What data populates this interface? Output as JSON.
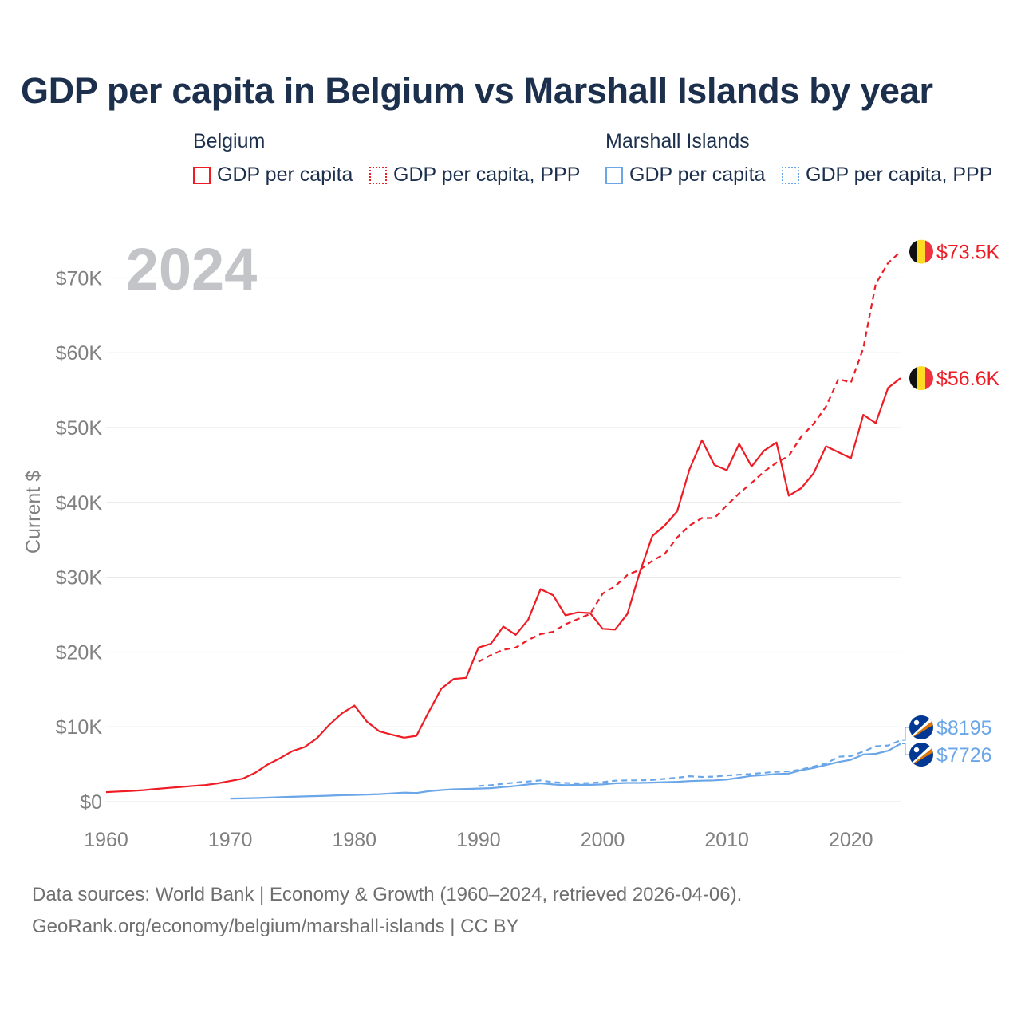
{
  "title": "GDP per capita in Belgium vs Marshall Islands by year",
  "legend": {
    "groups": [
      {
        "name": "Belgium",
        "color": "#ee1c25",
        "items": [
          {
            "label": "GDP per capita",
            "style": "solid"
          },
          {
            "label": "GDP per capita, PPP",
            "style": "dotted"
          }
        ]
      },
      {
        "name": "Marshall Islands",
        "color": "#6aa6e8",
        "items": [
          {
            "label": "GDP per capita",
            "style": "solid"
          },
          {
            "label": "GDP per capita, PPP",
            "style": "dotted"
          }
        ]
      }
    ]
  },
  "year_badge": "2024",
  "chart_data": {
    "type": "line",
    "ylabel": "Current $",
    "xlabel": "",
    "xlim": [
      1960,
      2024
    ],
    "ylim": [
      0,
      73500
    ],
    "x_ticks": [
      "1960",
      "1970",
      "1980",
      "1990",
      "2000",
      "2010",
      "2020"
    ],
    "x_tick_values": [
      1960,
      1970,
      1980,
      1990,
      2000,
      2010,
      2020
    ],
    "y_ticks": [
      "$0",
      "$10K",
      "$20K",
      "$30K",
      "$40K",
      "$50K",
      "$60K",
      "$70K"
    ],
    "y_tick_values": [
      0,
      10000,
      20000,
      30000,
      40000,
      50000,
      60000,
      70000
    ],
    "grid": true,
    "series": [
      {
        "name": "Belgium GDP per capita",
        "country": "Belgium",
        "color": "#ee1c25",
        "dash": "solid",
        "end_label": "$56.6K",
        "x": [
          1960,
          1961,
          1962,
          1963,
          1964,
          1965,
          1966,
          1967,
          1968,
          1969,
          1970,
          1971,
          1972,
          1973,
          1974,
          1975,
          1976,
          1977,
          1978,
          1979,
          1980,
          1981,
          1982,
          1983,
          1984,
          1985,
          1986,
          1987,
          1988,
          1989,
          1990,
          1991,
          1992,
          1993,
          1994,
          1995,
          1996,
          1997,
          1998,
          1999,
          2000,
          2001,
          2002,
          2003,
          2004,
          2005,
          2006,
          2007,
          2008,
          2009,
          2010,
          2011,
          2012,
          2013,
          2014,
          2015,
          2016,
          2017,
          2018,
          2019,
          2020,
          2021,
          2022,
          2023,
          2024
        ],
        "y": [
          1270,
          1350,
          1430,
          1530,
          1690,
          1830,
          1960,
          2100,
          2220,
          2450,
          2760,
          3070,
          3850,
          4950,
          5800,
          6750,
          7300,
          8500,
          10300,
          11800,
          12850,
          10700,
          9400,
          8950,
          8550,
          8800,
          12000,
          15100,
          16400,
          16550,
          20600,
          21100,
          23400,
          22300,
          24300,
          28400,
          27600,
          24900,
          25300,
          25200,
          23100,
          23000,
          25100,
          30700,
          35500,
          36900,
          38800,
          44400,
          48300,
          45000,
          44300,
          47800,
          44800,
          46900,
          48000,
          40900,
          41900,
          43900,
          47500,
          46700,
          45900,
          51700,
          50600,
          55300,
          56600
        ]
      },
      {
        "name": "Belgium GDP per capita, PPP",
        "country": "Belgium",
        "color": "#ee1c25",
        "dash": "dashed",
        "end_label": "$73.5K",
        "x": [
          1990,
          1991,
          1992,
          1993,
          1994,
          1995,
          1996,
          1997,
          1998,
          1999,
          2000,
          2001,
          2002,
          2003,
          2004,
          2005,
          2006,
          2007,
          2008,
          2009,
          2010,
          2011,
          2012,
          2013,
          2014,
          2015,
          2016,
          2017,
          2018,
          2019,
          2020,
          2021,
          2022,
          2023,
          2024
        ],
        "y": [
          18700,
          19600,
          20300,
          20600,
          21600,
          22400,
          22700,
          23700,
          24400,
          25100,
          27800,
          28800,
          30300,
          31000,
          32200,
          33100,
          35300,
          36900,
          37900,
          37900,
          39600,
          41200,
          42600,
          44100,
          45300,
          46200,
          48800,
          50500,
          52800,
          56500,
          56000,
          60600,
          69200,
          72000,
          73500
        ]
      },
      {
        "name": "Marshall Islands GDP per capita",
        "country": "Marshall Islands",
        "color": "#6aa6e8",
        "dash": "solid",
        "end_label": "$7726",
        "x": [
          1970,
          1971,
          1972,
          1973,
          1974,
          1975,
          1976,
          1977,
          1978,
          1979,
          1980,
          1981,
          1982,
          1983,
          1984,
          1985,
          1986,
          1987,
          1988,
          1989,
          1990,
          1991,
          1992,
          1993,
          1994,
          1995,
          1996,
          1997,
          1998,
          1999,
          2000,
          2001,
          2002,
          2003,
          2004,
          2005,
          2006,
          2007,
          2008,
          2009,
          2010,
          2011,
          2012,
          2013,
          2014,
          2015,
          2016,
          2017,
          2018,
          2019,
          2020,
          2021,
          2022,
          2023,
          2024
        ],
        "y": [
          420,
          440,
          480,
          530,
          600,
          650,
          700,
          750,
          800,
          860,
          900,
          950,
          1000,
          1100,
          1200,
          1150,
          1400,
          1550,
          1650,
          1700,
          1750,
          1800,
          1950,
          2100,
          2300,
          2450,
          2300,
          2200,
          2250,
          2250,
          2300,
          2450,
          2500,
          2500,
          2550,
          2600,
          2650,
          2750,
          2800,
          2850,
          2950,
          3200,
          3450,
          3550,
          3700,
          3750,
          4200,
          4500,
          4900,
          5300,
          5600,
          6300,
          6400,
          6800,
          7726
        ]
      },
      {
        "name": "Marshall Islands GDP per capita, PPP",
        "country": "Marshall Islands",
        "color": "#6aa6e8",
        "dash": "dashed",
        "end_label": "$8195",
        "x": [
          1990,
          1991,
          1992,
          1993,
          1994,
          1995,
          1996,
          1997,
          1998,
          1999,
          2000,
          2001,
          2002,
          2003,
          2004,
          2005,
          2006,
          2007,
          2008,
          2009,
          2010,
          2011,
          2012,
          2013,
          2014,
          2015,
          2016,
          2017,
          2018,
          2019,
          2020,
          2021,
          2022,
          2023,
          2024
        ],
        "y": [
          2100,
          2200,
          2400,
          2550,
          2700,
          2850,
          2600,
          2500,
          2450,
          2500,
          2600,
          2800,
          2850,
          2850,
          2900,
          3050,
          3200,
          3400,
          3300,
          3350,
          3500,
          3600,
          3700,
          3850,
          4000,
          4050,
          4300,
          4700,
          5100,
          6000,
          6100,
          6700,
          7400,
          7500,
          8195
        ]
      }
    ]
  },
  "footer": {
    "line1": "Data sources: World Bank | Economy & Growth (1960–2024, retrieved 2026-04-06).",
    "line2": "GeoRank.org/economy/belgium/marshall-islands | CC BY"
  }
}
